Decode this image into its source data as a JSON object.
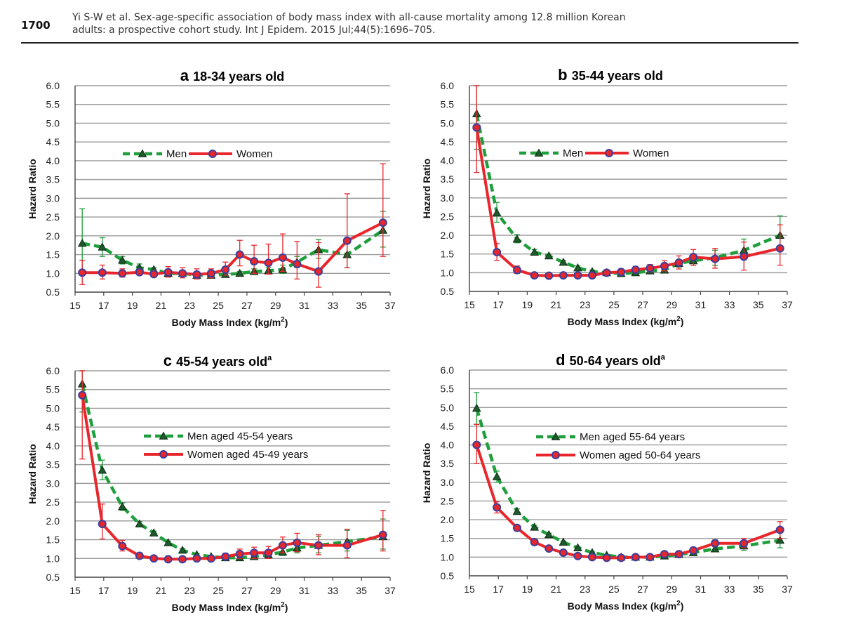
{
  "page": {
    "page_number": "1700",
    "citation_line1": "Yi S-W et al. Sex-age-specific association of body mass index with all-cause mortality among 12.8 million Korean",
    "citation_line2": "adults: a prospective cohort study. Int J Epidem. 2015 Jul;44(5):1696–705."
  },
  "colors": {
    "men": "#1f9e3c",
    "women": "#e8262b",
    "women_marker": "#3a3f9e",
    "grid": "#9a9a9a",
    "axis": "#444444"
  },
  "chart_data": [
    {
      "type": "line",
      "panel_letter": "a",
      "title": "18-34 years old",
      "title_sup": "",
      "xlabel": "Body Mass Index (kg/m²)",
      "ylabel": "Hazard Ratio",
      "xlim": [
        15,
        37
      ],
      "ylim": [
        0.5,
        6.0
      ],
      "xticks": [
        15,
        17,
        19,
        21,
        23,
        25,
        27,
        29,
        31,
        33,
        35,
        37
      ],
      "yticks": [
        0.5,
        1.0,
        1.5,
        2.0,
        2.5,
        3.0,
        3.5,
        4.0,
        4.5,
        5.0,
        5.5,
        6.0
      ],
      "grid": true,
      "legend_position": "upper-center",
      "series": [
        {
          "name": "Men",
          "style": "dashed",
          "marker": "triangle",
          "x": [
            15.5,
            16.9,
            18.3,
            19.5,
            20.5,
            21.5,
            22.5,
            23.5,
            24.5,
            25.5,
            26.5,
            27.5,
            28.5,
            29.5,
            30.5,
            32.0,
            34.0,
            36.5
          ],
          "y": [
            1.8,
            1.7,
            1.35,
            1.15,
            1.1,
            1.0,
            1.0,
            0.95,
            0.95,
            0.97,
            1.0,
            1.05,
            1.07,
            1.1,
            1.3,
            1.63,
            1.5,
            2.15
          ],
          "ci_low": [
            1.0,
            1.45,
            1.25,
            1.05,
            1.05,
            0.95,
            0.95,
            0.9,
            0.9,
            0.93,
            0.95,
            0.98,
            1.0,
            1.0,
            1.15,
            1.4,
            1.15,
            1.7
          ],
          "ci_high": [
            2.72,
            1.95,
            1.45,
            1.25,
            1.15,
            1.05,
            1.05,
            1.0,
            1.0,
            1.02,
            1.05,
            1.12,
            1.15,
            1.22,
            1.45,
            1.9,
            1.85,
            2.65
          ]
        },
        {
          "name": "Women",
          "style": "solid",
          "marker": "circle",
          "x": [
            15.5,
            16.9,
            18.3,
            19.5,
            20.5,
            21.5,
            22.5,
            23.5,
            24.5,
            25.5,
            26.5,
            27.5,
            28.5,
            29.5,
            30.5,
            32.0,
            34.0,
            36.5
          ],
          "y": [
            1.02,
            1.02,
            1.0,
            1.03,
            0.98,
            1.03,
            1.0,
            0.97,
            1.0,
            1.1,
            1.5,
            1.32,
            1.28,
            1.42,
            1.25,
            1.05,
            1.87,
            2.35
          ],
          "ci_low": [
            0.7,
            0.85,
            0.9,
            0.95,
            0.9,
            0.9,
            0.88,
            0.85,
            0.88,
            0.95,
            1.2,
            1.0,
            0.98,
            1.05,
            0.85,
            0.63,
            1.15,
            1.45
          ],
          "ci_high": [
            1.35,
            1.22,
            1.12,
            1.12,
            1.08,
            1.18,
            1.15,
            1.12,
            1.12,
            1.3,
            1.88,
            1.75,
            1.78,
            2.05,
            1.85,
            1.82,
            3.12,
            3.92
          ]
        }
      ]
    },
    {
      "type": "line",
      "panel_letter": "b",
      "title": "35-44 years old",
      "title_sup": "",
      "xlabel": "Body Mass Index (kg/m²)",
      "ylabel": "Hazard Ratio",
      "xlim": [
        15,
        37
      ],
      "ylim": [
        0.5,
        6.0
      ],
      "xticks": [
        15,
        17,
        19,
        21,
        23,
        25,
        27,
        29,
        31,
        33,
        35,
        37
      ],
      "yticks": [
        0.5,
        1.0,
        1.5,
        2.0,
        2.5,
        3.0,
        3.5,
        4.0,
        4.5,
        5.0,
        5.5,
        6.0
      ],
      "grid": true,
      "legend_position": "upper-center",
      "series": [
        {
          "name": "Men",
          "style": "dashed",
          "marker": "triangle",
          "x": [
            15.5,
            16.9,
            18.3,
            19.5,
            20.5,
            21.5,
            22.5,
            23.5,
            24.5,
            25.5,
            26.5,
            27.5,
            28.5,
            29.5,
            30.5,
            32.0,
            34.0,
            36.5
          ],
          "y": [
            5.25,
            2.6,
            1.9,
            1.55,
            1.45,
            1.28,
            1.13,
            1.03,
            1.0,
            0.98,
            1.0,
            1.05,
            1.07,
            1.25,
            1.32,
            1.4,
            1.6,
            2.0
          ],
          "ci_low": [
            4.3,
            2.35,
            1.8,
            1.48,
            1.4,
            1.23,
            1.08,
            0.99,
            0.96,
            0.95,
            0.96,
            1.0,
            1.0,
            1.15,
            1.2,
            1.2,
            1.35,
            1.7
          ],
          "ci_high": [
            6.0,
            2.88,
            2.02,
            1.62,
            1.5,
            1.33,
            1.18,
            1.07,
            1.04,
            1.02,
            1.05,
            1.12,
            1.15,
            1.35,
            1.45,
            1.6,
            1.9,
            2.52
          ]
        },
        {
          "name": "Women",
          "style": "solid",
          "marker": "circle",
          "x": [
            15.5,
            16.9,
            18.3,
            19.5,
            20.5,
            21.5,
            22.5,
            23.5,
            24.5,
            25.5,
            26.5,
            27.5,
            28.5,
            29.5,
            30.5,
            32.0,
            34.0,
            36.5
          ],
          "y": [
            4.88,
            1.55,
            1.07,
            0.93,
            0.92,
            0.93,
            0.93,
            0.93,
            1.0,
            1.02,
            1.08,
            1.12,
            1.18,
            1.27,
            1.42,
            1.37,
            1.43,
            1.65
          ],
          "ci_low": [
            3.68,
            1.33,
            0.98,
            0.88,
            0.87,
            0.88,
            0.88,
            0.88,
            0.95,
            0.96,
            1.0,
            1.02,
            1.05,
            1.1,
            1.2,
            1.12,
            1.07,
            1.2
          ],
          "ci_high": [
            6.0,
            1.78,
            1.18,
            0.99,
            0.97,
            0.98,
            0.98,
            0.98,
            1.05,
            1.1,
            1.17,
            1.22,
            1.32,
            1.45,
            1.62,
            1.65,
            1.82,
            2.28
          ]
        }
      ]
    },
    {
      "type": "line",
      "panel_letter": "c",
      "title": "45-54 years old",
      "title_sup": "a",
      "xlabel": "Body Mass Index (kg/m²)",
      "ylabel": "Hazard Ratio",
      "xlim": [
        15,
        37
      ],
      "ylim": [
        0.5,
        6.0
      ],
      "xticks": [
        15,
        17,
        19,
        21,
        23,
        25,
        27,
        29,
        31,
        33,
        35,
        37
      ],
      "yticks": [
        0.5,
        1.0,
        1.5,
        2.0,
        2.5,
        3.0,
        3.5,
        4.0,
        4.5,
        5.0,
        5.5,
        6.0
      ],
      "grid": true,
      "legend_position": "center",
      "series": [
        {
          "name": "Men aged 45-54 years",
          "style": "dashed",
          "marker": "triangle",
          "x": [
            15.5,
            16.9,
            18.3,
            19.5,
            20.5,
            21.5,
            22.5,
            23.5,
            24.5,
            25.5,
            26.5,
            27.5,
            28.5,
            29.5,
            30.5,
            32.0,
            34.0,
            36.5
          ],
          "y": [
            5.65,
            3.35,
            2.38,
            1.92,
            1.68,
            1.42,
            1.22,
            1.1,
            1.05,
            1.02,
            1.02,
            1.05,
            1.1,
            1.17,
            1.28,
            1.35,
            1.45,
            1.58
          ],
          "ci_low": [
            4.9,
            3.1,
            2.28,
            1.86,
            1.63,
            1.38,
            1.18,
            1.07,
            1.02,
            0.99,
            0.99,
            1.0,
            1.03,
            1.08,
            1.15,
            1.15,
            1.2,
            1.25
          ],
          "ci_high": [
            6.0,
            3.62,
            2.48,
            1.98,
            1.73,
            1.46,
            1.26,
            1.13,
            1.08,
            1.05,
            1.06,
            1.1,
            1.18,
            1.27,
            1.42,
            1.58,
            1.75,
            2.05
          ]
        },
        {
          "name": "Women aged 45-49 years",
          "style": "solid",
          "marker": "circle",
          "x": [
            15.5,
            16.9,
            18.3,
            19.5,
            20.5,
            21.5,
            22.5,
            23.5,
            24.5,
            25.5,
            26.5,
            27.5,
            28.5,
            29.5,
            30.5,
            32.0,
            34.0,
            36.5
          ],
          "y": [
            5.35,
            1.92,
            1.33,
            1.07,
            1.0,
            0.98,
            0.98,
            1.0,
            1.0,
            1.05,
            1.12,
            1.15,
            1.15,
            1.35,
            1.42,
            1.35,
            1.35,
            1.63
          ],
          "ci_low": [
            3.65,
            1.52,
            1.2,
            1.0,
            0.94,
            0.93,
            0.93,
            0.94,
            0.94,
            0.97,
            1.0,
            1.0,
            1.0,
            1.15,
            1.18,
            1.1,
            1.02,
            1.2
          ],
          "ci_high": [
            6.0,
            2.45,
            1.48,
            1.15,
            1.07,
            1.04,
            1.04,
            1.06,
            1.07,
            1.14,
            1.25,
            1.3,
            1.32,
            1.57,
            1.67,
            1.63,
            1.78,
            2.28
          ]
        }
      ]
    },
    {
      "type": "line",
      "panel_letter": "d",
      "title": "50-64 years old",
      "title_sup": "a",
      "xlabel": "Body Mass Index (kg/m²)",
      "ylabel": "Hazard Ratio",
      "xlim": [
        15,
        37
      ],
      "ylim": [
        0.5,
        6.0
      ],
      "xticks": [
        15,
        17,
        19,
        21,
        23,
        25,
        27,
        29,
        31,
        33,
        35,
        37
      ],
      "yticks": [
        0.5,
        1.0,
        1.5,
        2.0,
        2.5,
        3.0,
        3.5,
        4.0,
        4.5,
        5.0,
        5.5,
        6.0
      ],
      "grid": true,
      "legend_position": "center",
      "series": [
        {
          "name": "Men aged 55-64 years",
          "style": "dashed",
          "marker": "triangle",
          "x": [
            15.5,
            16.9,
            18.3,
            19.5,
            20.5,
            21.5,
            22.5,
            23.5,
            24.5,
            25.5,
            26.5,
            27.5,
            28.5,
            29.5,
            30.5,
            32.0,
            34.0,
            36.5
          ],
          "y": [
            4.98,
            3.15,
            2.22,
            1.8,
            1.6,
            1.4,
            1.25,
            1.12,
            1.05,
            1.0,
            1.0,
            1.0,
            1.03,
            1.07,
            1.12,
            1.22,
            1.3,
            1.45
          ],
          "ci_low": [
            4.55,
            3.0,
            2.15,
            1.75,
            1.56,
            1.37,
            1.22,
            1.1,
            1.03,
            0.98,
            0.98,
            0.98,
            1.0,
            1.04,
            1.08,
            1.15,
            1.18,
            1.25
          ],
          "ci_high": [
            5.4,
            3.3,
            2.29,
            1.85,
            1.64,
            1.43,
            1.28,
            1.14,
            1.07,
            1.02,
            1.02,
            1.02,
            1.06,
            1.1,
            1.17,
            1.29,
            1.43,
            1.65
          ]
        },
        {
          "name": "Women aged 50-64 years",
          "style": "solid",
          "marker": "circle",
          "x": [
            15.5,
            16.9,
            18.3,
            19.5,
            20.5,
            21.5,
            22.5,
            23.5,
            24.5,
            25.5,
            26.5,
            27.5,
            28.5,
            29.5,
            30.5,
            32.0,
            34.0,
            36.5
          ],
          "y": [
            4.0,
            2.33,
            1.78,
            1.4,
            1.23,
            1.12,
            1.03,
            1.0,
            0.98,
            0.98,
            1.0,
            1.0,
            1.08,
            1.08,
            1.18,
            1.37,
            1.37,
            1.73
          ],
          "ci_low": [
            3.5,
            2.18,
            1.72,
            1.36,
            1.2,
            1.09,
            1.0,
            0.98,
            0.96,
            0.96,
            0.97,
            0.97,
            1.03,
            1.03,
            1.12,
            1.28,
            1.25,
            1.5
          ],
          "ci_high": [
            4.55,
            2.48,
            1.84,
            1.44,
            1.26,
            1.15,
            1.06,
            1.02,
            1.0,
            1.0,
            1.03,
            1.04,
            1.13,
            1.13,
            1.25,
            1.46,
            1.5,
            1.95
          ]
        }
      ]
    }
  ]
}
